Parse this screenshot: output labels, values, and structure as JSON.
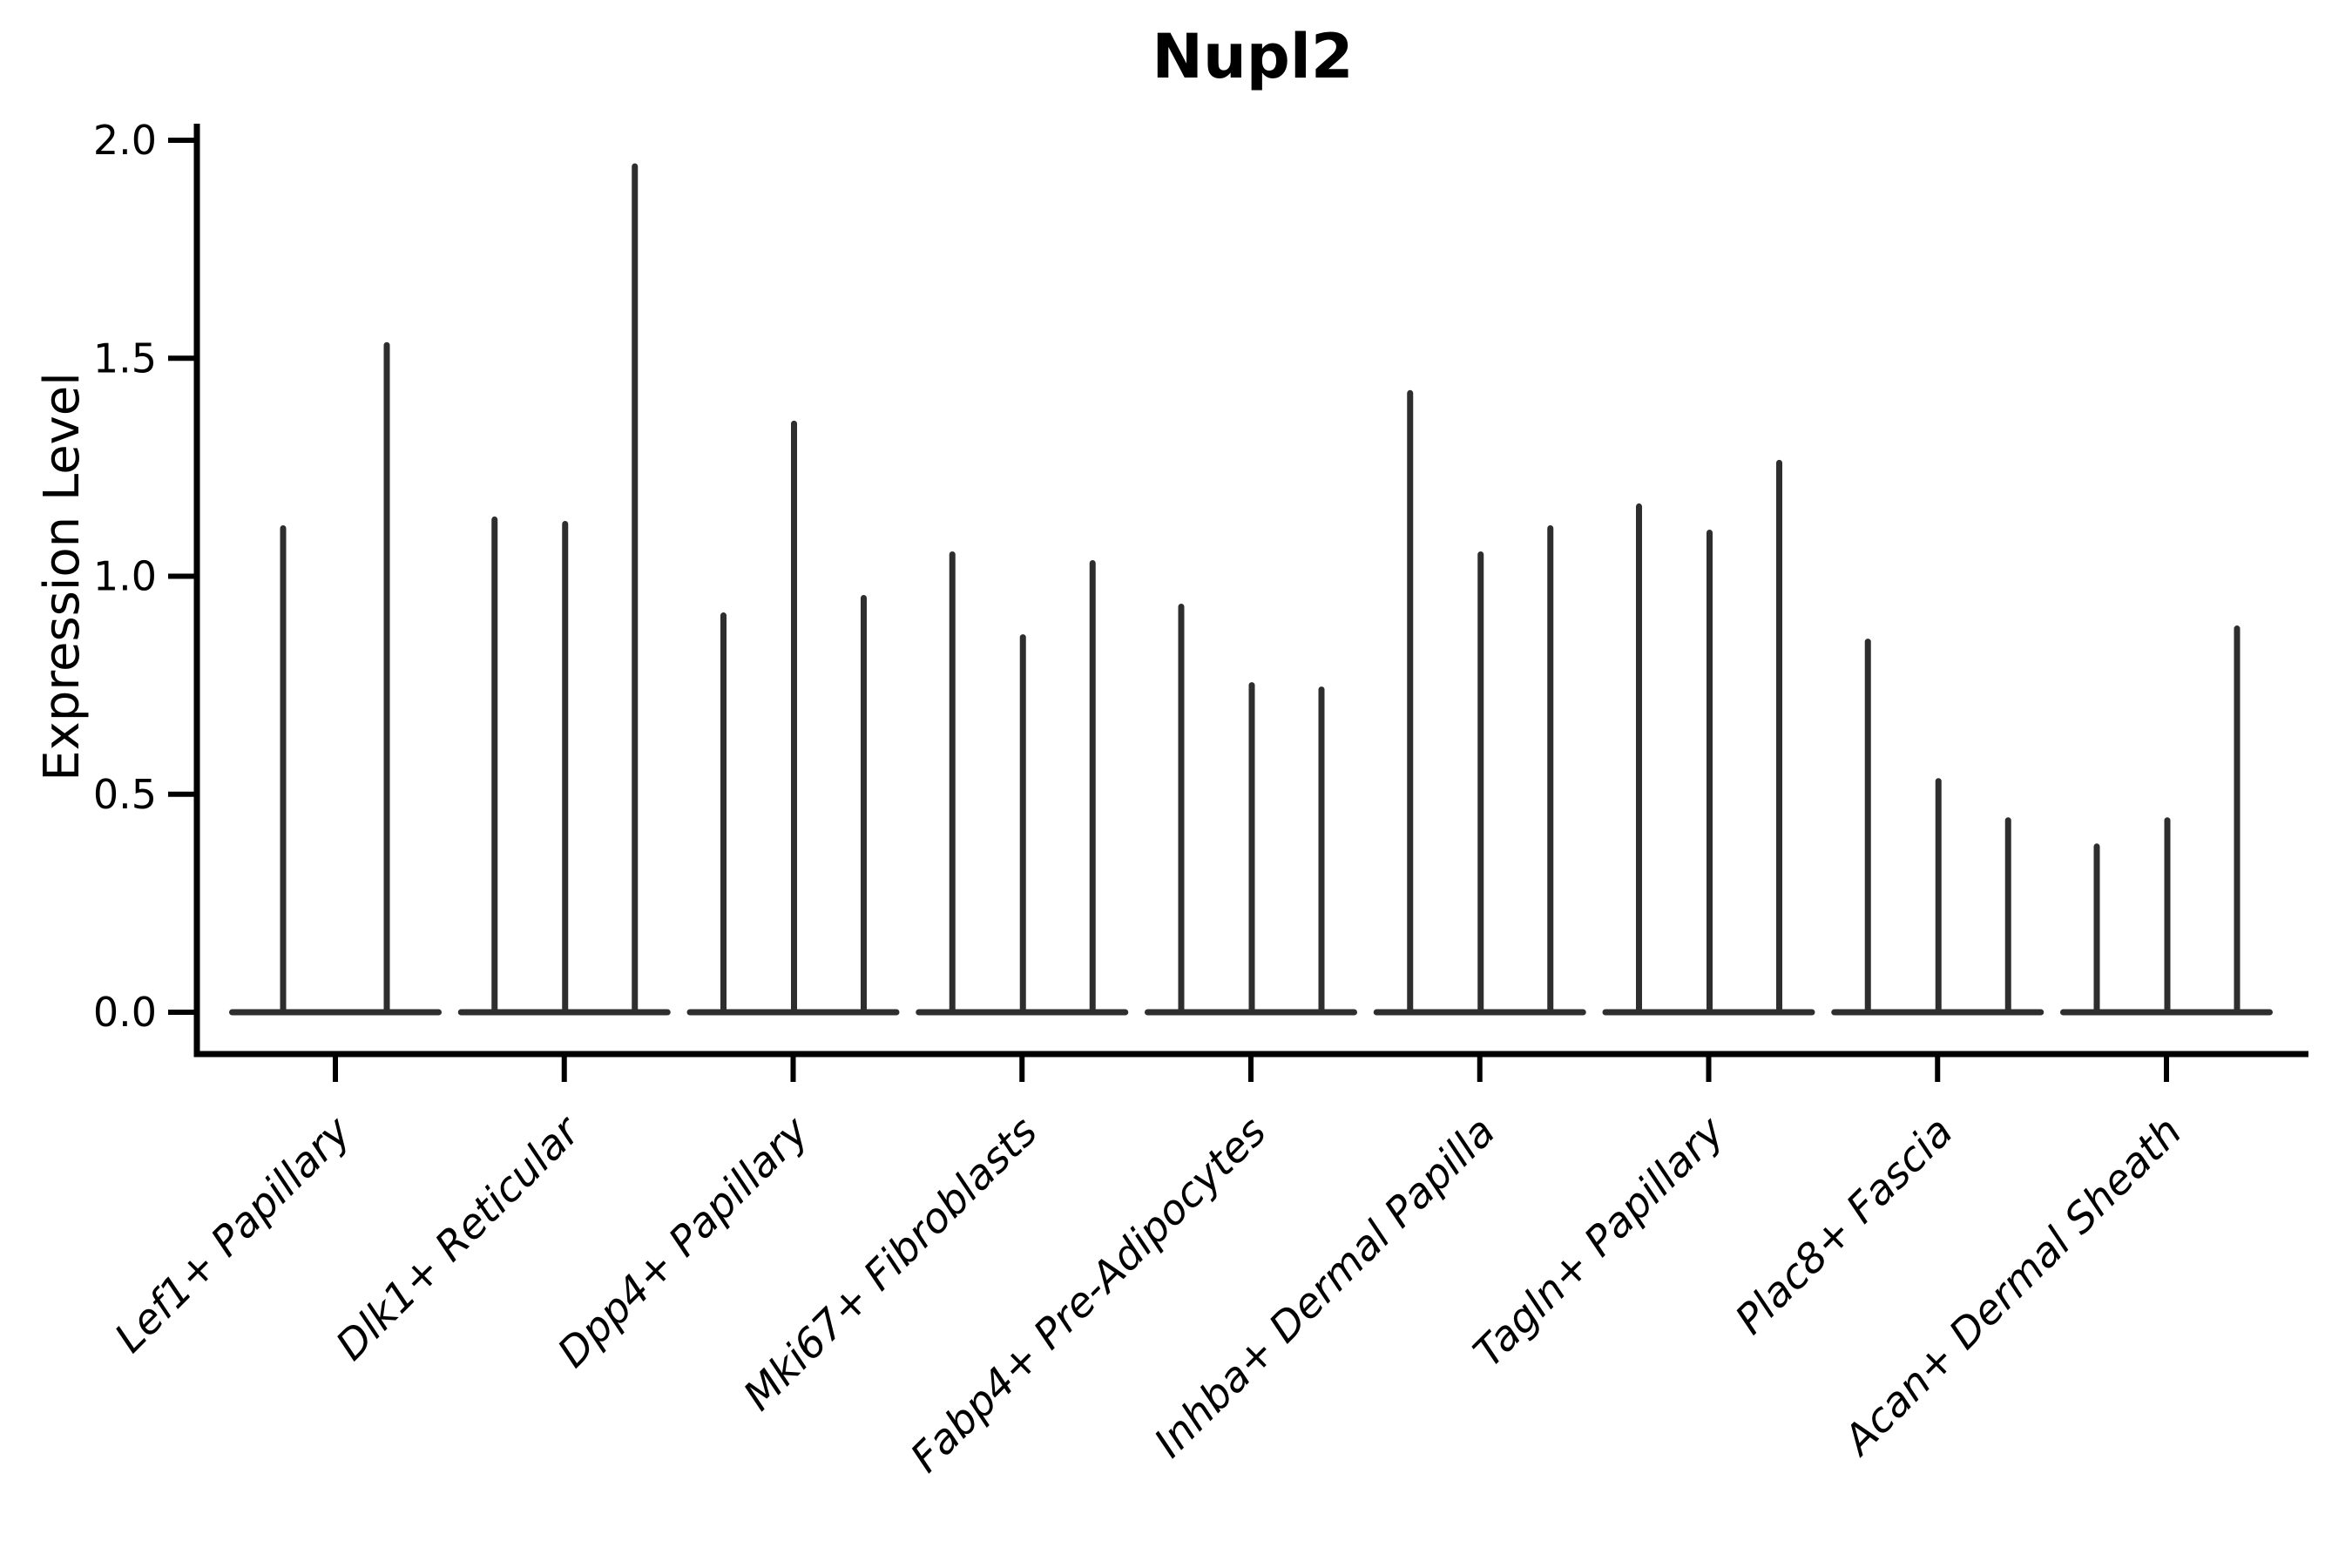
{
  "chart": {
    "title": "Nupl2",
    "ylabel": "Expression Level",
    "colors": {
      "violin": "#2e2e2e",
      "axis": "#000000",
      "text": "#000000",
      "background": "#ffffff"
    }
  },
  "chart_data": {
    "type": "violin",
    "title": "Nupl2",
    "xlabel": "",
    "ylabel": "Expression Level",
    "ylim": [
      0,
      2.0
    ],
    "y_tick_values": [
      0.0,
      0.5,
      1.0,
      1.5,
      2.0
    ],
    "y_tick_labels": [
      "0.0",
      "0.5",
      "1.0",
      "1.5",
      "2.0"
    ],
    "grid": false,
    "legend": null,
    "description": "Thin spike-like violins; bulk of density is a flat lens at 0, each thin spike reaches the listed maximum expression value",
    "categories": [
      "Lef1+ Papillary",
      "Dlk1+ Reticular",
      "Dpp4+ Papillary",
      "Mki67+ Fibroblasts",
      "Fabp4+ Pre-Adipocytes",
      "Inhba+ Dermal Papilla",
      "Tagln+ Papillary",
      "Plac8+ Fascia",
      "Acan+ Dermal Sheath"
    ],
    "spike_values": [
      [
        1.11,
        1.53
      ],
      [
        1.13,
        1.12,
        1.94
      ],
      [
        0.91,
        1.35,
        0.95
      ],
      [
        1.05,
        0.86,
        1.03
      ],
      [
        0.93,
        0.75,
        0.74
      ],
      [
        1.42,
        1.05,
        1.11
      ],
      [
        1.16,
        1.1,
        1.26
      ],
      [
        0.85,
        0.53,
        0.44
      ],
      [
        0.38,
        0.44,
        0.88
      ]
    ]
  }
}
